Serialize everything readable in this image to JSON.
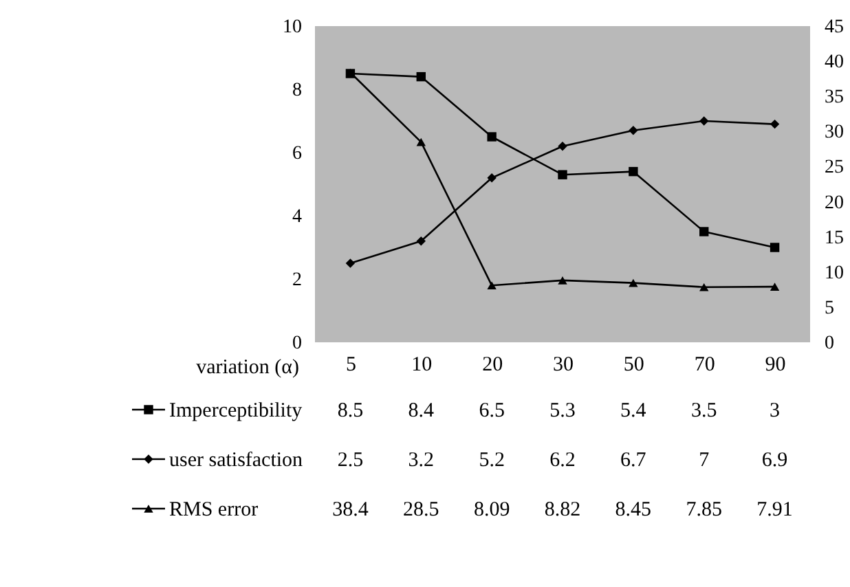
{
  "chart_data": {
    "type": "line",
    "xlabel": "variation (α)",
    "categories": [
      "5",
      "10",
      "20",
      "30",
      "50",
      "70",
      "90"
    ],
    "series": [
      {
        "name": "Imperceptibility",
        "color": "#000000",
        "marker": "square",
        "values": [
          8.5,
          8.4,
          6.5,
          5.3,
          5.4,
          3.5,
          3
        ]
      },
      {
        "name": "user satisfaction",
        "color": "#000000",
        "marker": "diamond",
        "values": [
          2.5,
          3.2,
          5.2,
          6.2,
          6.7,
          7,
          6.9
        ]
      },
      {
        "name": "RMS error",
        "color": "#000000",
        "marker": "triangle",
        "axis": "y2",
        "values": [
          38.4,
          28.5,
          8.09,
          8.82,
          8.45,
          7.85,
          7.91
        ]
      }
    ],
    "ylim": [
      0,
      10
    ],
    "yticks": [
      0,
      2,
      4,
      6,
      8,
      10
    ],
    "y2lim": [
      0,
      45
    ],
    "y2ticks": [
      0,
      5,
      10,
      15,
      20,
      25,
      30,
      35,
      40,
      45
    ],
    "data_labels": true,
    "legend": "bottom",
    "grid": false,
    "line_style": "solid"
  }
}
